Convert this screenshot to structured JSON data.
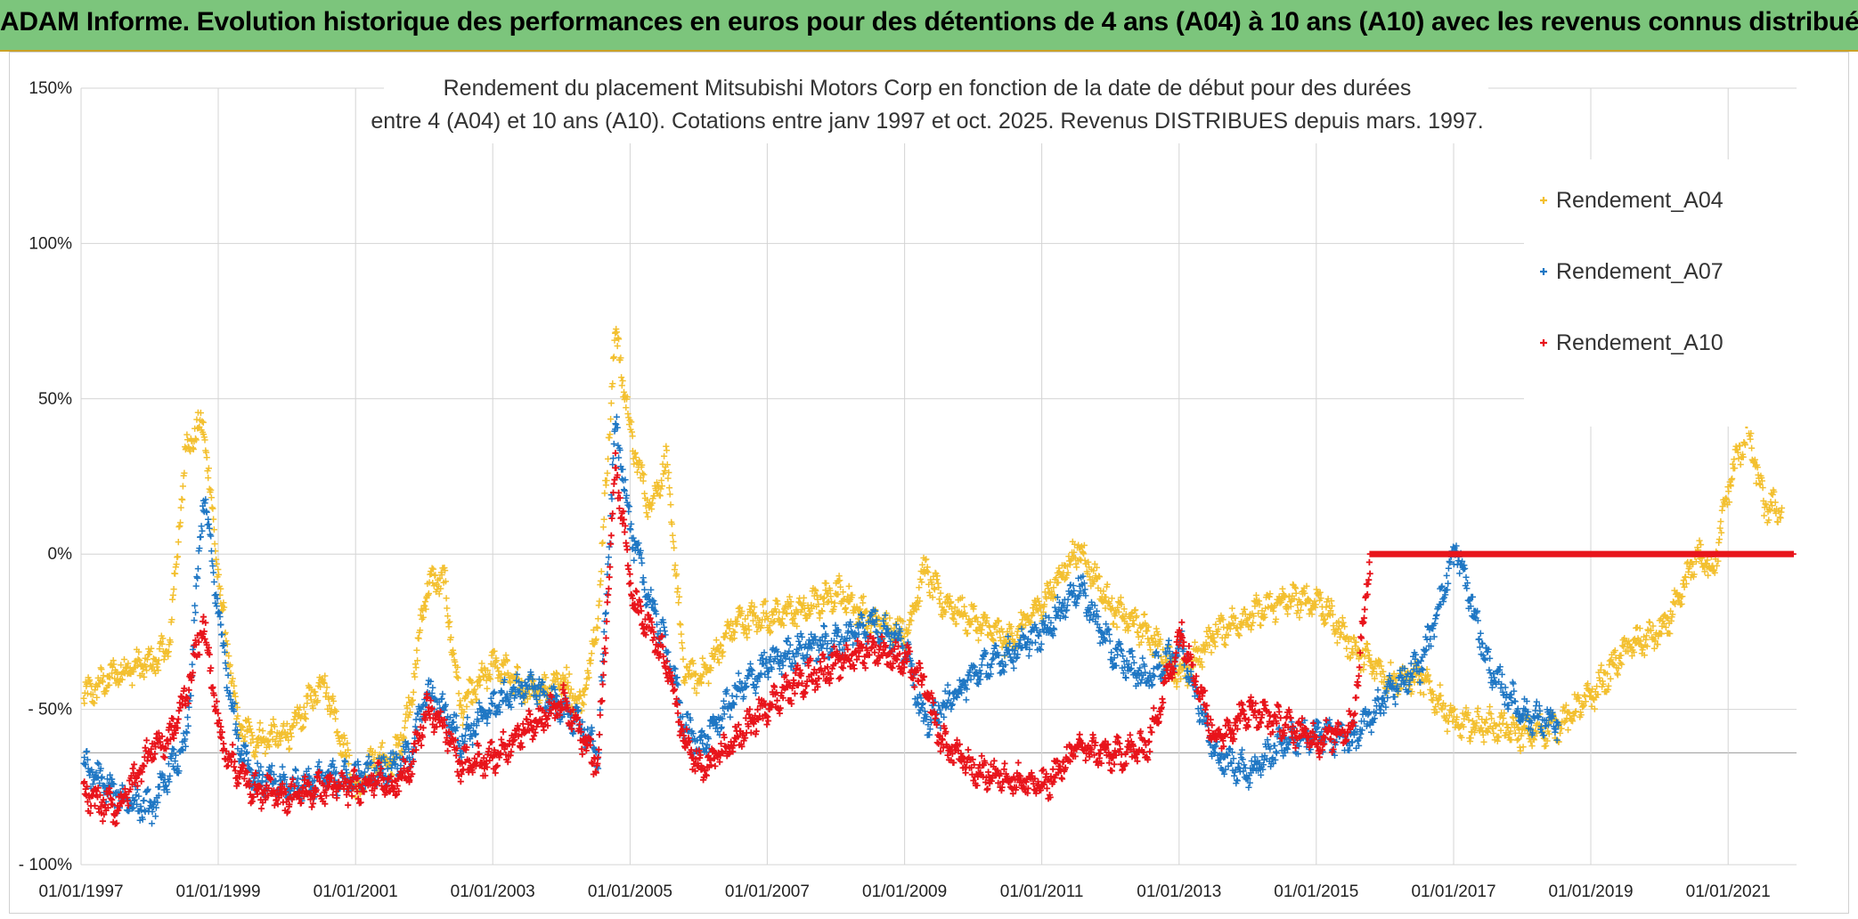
{
  "header": {
    "title": "ADAM Informe. Evolution historique des performances en euros pour des détentions de 4 ans (A04) à 10 ans (A10) avec les revenus connus distribués"
  },
  "chart_data": {
    "type": "scatter",
    "title_line1": "Rendement du placement Mitsubishi Motors Corp en fonction de la date de début pour des durées",
    "title_line2": "entre 4 (A04) et 10 ans (A10). Cotations entre janv 1997 et oct. 2025. Revenus DISTRIBUES depuis mars. 1997.",
    "xlabel": "",
    "ylabel": "",
    "x_range": [
      "1997-01-01",
      "2021-12-31"
    ],
    "ylim": [
      -100,
      150
    ],
    "y_ticks": [
      -100,
      -50,
      0,
      50,
      100,
      150
    ],
    "y_tick_labels": [
      "- 100%",
      "- 50%",
      "0%",
      "50%",
      "100%",
      "150%"
    ],
    "x_ticks": [
      "1997-01-01",
      "1999-01-01",
      "2001-01-01",
      "2003-01-01",
      "2005-01-01",
      "2007-01-01",
      "2009-01-01",
      "2011-01-01",
      "2013-01-01",
      "2015-01-01",
      "2017-01-01",
      "2019-01-01",
      "2021-01-01"
    ],
    "x_tick_labels": [
      "01/01/1997",
      "01/01/1999",
      "01/01/2001",
      "01/01/2003",
      "01/01/2005",
      "01/01/2007",
      "01/01/2009",
      "01/01/2011",
      "01/01/2013",
      "01/01/2015",
      "01/01/2017",
      "01/01/2019",
      "01/01/2021"
    ],
    "grid": true,
    "legend_position": "top-right",
    "marker": "+",
    "series": [
      {
        "name": "Rendement_A04",
        "color": "#f3c030",
        "x": [
          "1997-01",
          "1997-07",
          "1998-01",
          "1998-04",
          "1998-07",
          "1998-10",
          "1999-01",
          "1999-04",
          "1999-07",
          "2000-01",
          "2000-07",
          "2001-01",
          "2001-04",
          "2001-07",
          "2001-10",
          "2002-01",
          "2002-04",
          "2002-07",
          "2003-01",
          "2003-07",
          "2004-01",
          "2004-04",
          "2004-07",
          "2004-10",
          "2005-01",
          "2005-04",
          "2005-07",
          "2005-10",
          "2006-01",
          "2006-07",
          "2007-01",
          "2007-07",
          "2008-01",
          "2008-07",
          "2009-01",
          "2009-04",
          "2009-07",
          "2010-01",
          "2010-07",
          "2011-01",
          "2011-07",
          "2012-01",
          "2012-07",
          "2013-01",
          "2013-07",
          "2014-01",
          "2014-07",
          "2015-01",
          "2015-07",
          "2016-01",
          "2016-07",
          "2017-01",
          "2017-07",
          "2018-01",
          "2018-07",
          "2019-01",
          "2019-07",
          "2020-01",
          "2020-04",
          "2020-07",
          "2020-10",
          "2021-01",
          "2021-04",
          "2021-07",
          "2021-10"
        ],
        "values": [
          -46,
          -38,
          -35,
          -30,
          35,
          42,
          -15,
          -55,
          -60,
          -58,
          -40,
          -78,
          -65,
          -68,
          -50,
          -10,
          -8,
          -50,
          -35,
          -45,
          -40,
          -50,
          -20,
          72,
          35,
          15,
          30,
          -38,
          -40,
          -22,
          -20,
          -18,
          -12,
          -22,
          -25,
          -5,
          -15,
          -22,
          -28,
          -15,
          2,
          -18,
          -25,
          -40,
          -25,
          -20,
          -15,
          -15,
          -30,
          -40,
          -40,
          -55,
          -55,
          -58,
          -55,
          -45,
          -30,
          -25,
          -15,
          0,
          -5,
          25,
          40,
          15,
          15
        ]
      },
      {
        "name": "Rendement_A07",
        "color": "#1f77c4",
        "x": [
          "1997-01",
          "1997-07",
          "1998-01",
          "1998-04",
          "1998-07",
          "1998-10",
          "1999-01",
          "1999-04",
          "1999-07",
          "2000-01",
          "2000-07",
          "2001-01",
          "2001-04",
          "2001-07",
          "2001-10",
          "2002-01",
          "2002-04",
          "2002-07",
          "2003-01",
          "2003-07",
          "2004-01",
          "2004-04",
          "2004-07",
          "2004-10",
          "2005-01",
          "2005-04",
          "2005-07",
          "2005-10",
          "2006-01",
          "2006-07",
          "2007-01",
          "2007-07",
          "2008-01",
          "2008-07",
          "2009-01",
          "2009-04",
          "2009-07",
          "2010-01",
          "2010-07",
          "2011-01",
          "2011-07",
          "2012-01",
          "2012-07",
          "2013-01",
          "2013-07",
          "2014-01",
          "2014-07",
          "2015-01",
          "2015-07",
          "2016-01",
          "2016-07",
          "2017-01",
          "2017-07",
          "2018-01",
          "2018-07"
        ],
        "values": [
          -68,
          -78,
          -82,
          -70,
          -62,
          20,
          -25,
          -60,
          -72,
          -75,
          -72,
          -72,
          -70,
          -68,
          -65,
          -45,
          -50,
          -60,
          -48,
          -42,
          -50,
          -55,
          -65,
          42,
          5,
          -15,
          -30,
          -55,
          -62,
          -45,
          -35,
          -30,
          -28,
          -22,
          -30,
          -55,
          -50,
          -38,
          -32,
          -25,
          -10,
          -32,
          -40,
          -30,
          -65,
          -70,
          -60,
          -58,
          -60,
          -45,
          -35,
          2,
          -38,
          -52,
          -55
        ]
      },
      {
        "name": "Rendement_A10",
        "color": "#e8141b",
        "x": [
          "1997-01",
          "1997-07",
          "1998-01",
          "1998-04",
          "1998-07",
          "1998-10",
          "1999-01",
          "1999-04",
          "1999-07",
          "2000-01",
          "2000-07",
          "2001-01",
          "2001-04",
          "2001-07",
          "2001-10",
          "2002-01",
          "2002-04",
          "2002-07",
          "2003-01",
          "2003-07",
          "2004-01",
          "2004-04",
          "2004-07",
          "2004-10",
          "2005-01",
          "2005-04",
          "2005-07",
          "2005-10",
          "2006-01",
          "2006-07",
          "2007-01",
          "2007-07",
          "2008-01",
          "2008-07",
          "2009-01",
          "2009-04",
          "2009-07",
          "2010-01",
          "2010-07",
          "2011-01",
          "2011-07",
          "2012-01",
          "2012-07",
          "2013-01",
          "2013-07",
          "2014-01",
          "2014-07",
          "2015-01",
          "2015-07",
          "2015-10",
          "2016-01",
          "2016-07",
          "2017-01",
          "2017-07",
          "2018-01",
          "2018-07",
          "2019-01",
          "2019-07",
          "2020-01",
          "2020-07",
          "2021-01",
          "2021-07",
          "2021-12"
        ],
        "values": [
          -78,
          -82,
          -62,
          -60,
          -45,
          -22,
          -60,
          -70,
          -76,
          -78,
          -75,
          -75,
          -72,
          -75,
          -70,
          -50,
          -55,
          -68,
          -65,
          -55,
          -48,
          -58,
          -68,
          30,
          -15,
          -25,
          -35,
          -60,
          -70,
          -60,
          -48,
          -40,
          -35,
          -30,
          -35,
          -42,
          -60,
          -70,
          -72,
          -75,
          -62,
          -65,
          -62,
          -25,
          -60,
          -50,
          -55,
          -60,
          -55,
          0,
          0,
          0,
          0,
          0,
          0,
          0,
          0,
          0,
          0,
          0,
          0,
          0,
          0
        ]
      }
    ]
  }
}
